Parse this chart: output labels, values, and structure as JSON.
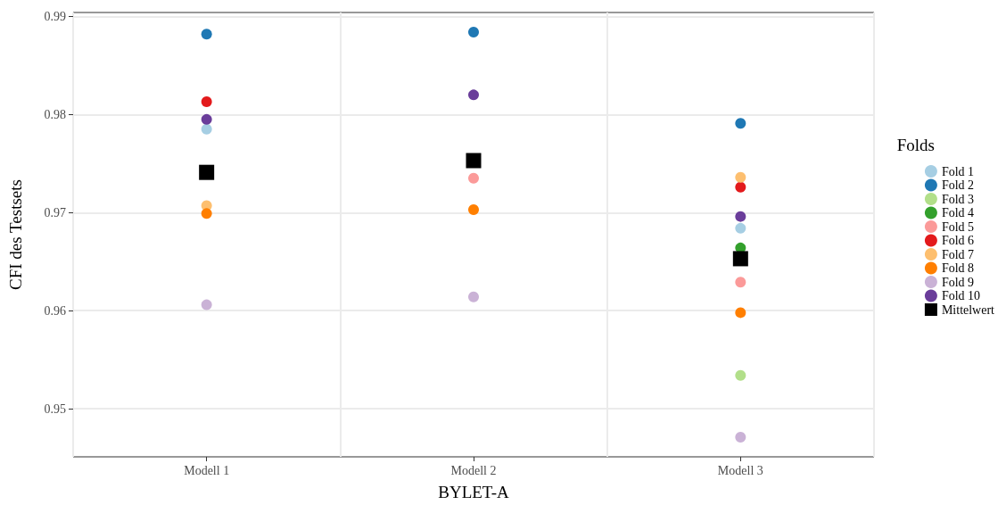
{
  "chart_data": {
    "type": "scatter",
    "xlabel": "BYLET-A",
    "ylabel": "CFI des Testsets",
    "legend_title": "Folds",
    "categories": [
      "Modell 1",
      "Modell 2",
      "Modell 3"
    ],
    "ylim": [
      0.9451,
      0.9904
    ],
    "yticks": [
      0.95,
      0.96,
      0.97,
      0.98,
      0.99
    ],
    "grid": true,
    "legend": "right",
    "marker": "circle",
    "series": [
      {
        "name": "Fold 1",
        "color": "#a6cee3",
        "values": [
          0.9785,
          null,
          0.9684
        ]
      },
      {
        "name": "Fold 2",
        "color": "#1f78b4",
        "values": [
          0.9882,
          0.9884,
          0.9791
        ]
      },
      {
        "name": "Fold 3",
        "color": "#b2df8a",
        "values": [
          null,
          null,
          0.9534
        ]
      },
      {
        "name": "Fold 4",
        "color": "#33a02c",
        "values": [
          null,
          null,
          0.9664
        ]
      },
      {
        "name": "Fold 5",
        "color": "#fb9a99",
        "values": [
          null,
          0.9735,
          0.9629
        ]
      },
      {
        "name": "Fold 6",
        "color": "#e31a1c",
        "values": [
          0.9813,
          null,
          0.9726
        ]
      },
      {
        "name": "Fold 7",
        "color": "#fdbf6f",
        "values": [
          0.9707,
          null,
          0.9736
        ]
      },
      {
        "name": "Fold 8",
        "color": "#ff7f00",
        "values": [
          0.9699,
          0.9703,
          0.9598
        ]
      },
      {
        "name": "Fold 9",
        "color": "#cab2d6",
        "values": [
          0.9606,
          0.9614,
          0.9471
        ]
      },
      {
        "name": "Fold 10",
        "color": "#6a3d9a",
        "values": [
          0.9795,
          0.982,
          0.9696
        ]
      },
      {
        "name": "Mittelwert",
        "color": "#000000",
        "marker": "square",
        "values": [
          0.9741,
          0.9753,
          0.9653
        ]
      }
    ]
  }
}
